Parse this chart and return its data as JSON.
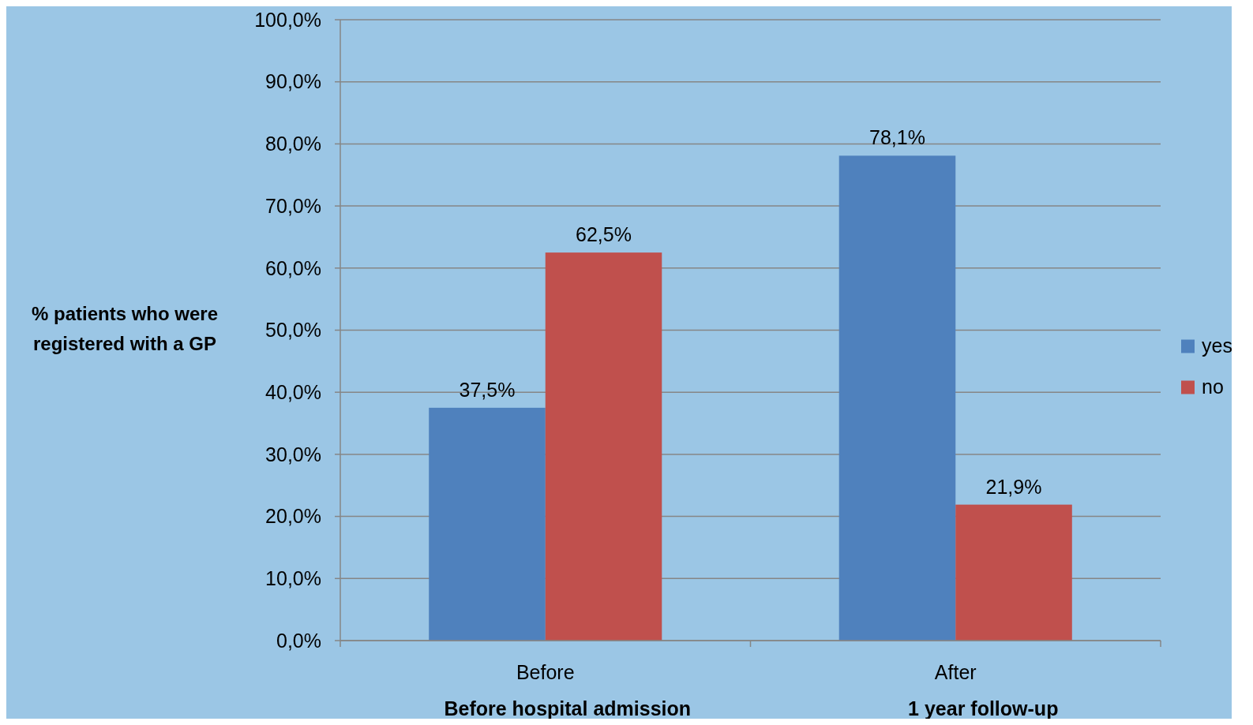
{
  "chart_data": {
    "type": "bar",
    "categories": [
      "Before",
      "After"
    ],
    "series": [
      {
        "name": "yes",
        "color": "#4f81bd",
        "values": [
          37.5,
          78.1
        ],
        "value_labels": [
          "37,5%",
          "78,1%"
        ]
      },
      {
        "name": "no",
        "color": "#c0504d",
        "values": [
          62.5,
          21.9
        ],
        "value_labels": [
          "62,5%",
          "21,9%"
        ]
      }
    ],
    "ylabel": "% patients who were registered with a GP",
    "annotations": [
      "Before hospital admission",
      "1 year follow-up"
    ],
    "ylim": [
      0,
      100
    ],
    "yticks": [
      {
        "value": 0,
        "label": "0,0%"
      },
      {
        "value": 10,
        "label": "10,0%"
      },
      {
        "value": 20,
        "label": "20,0%"
      },
      {
        "value": 30,
        "label": "30,0%"
      },
      {
        "value": 40,
        "label": "40,0%"
      },
      {
        "value": 50,
        "label": "50,0%"
      },
      {
        "value": 60,
        "label": "60,0%"
      },
      {
        "value": 70,
        "label": "70,0%"
      },
      {
        "value": 80,
        "label": "80,0%"
      },
      {
        "value": 90,
        "label": "90,0%"
      },
      {
        "value": 100,
        "label": "100,0%"
      }
    ],
    "grid": "y",
    "legend": "right"
  }
}
